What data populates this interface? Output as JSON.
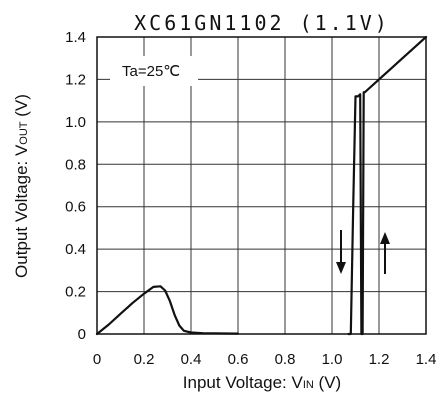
{
  "chart_data": {
    "type": "line",
    "title": "XC61GN1102 (1.1V)",
    "xlabel_main": "Input Voltage: V",
    "xlabel_sub": "IN",
    "xlabel_tail": " (V)",
    "ylabel_main": "Output Voltage: V",
    "ylabel_sub": "OUT",
    "ylabel_tail": " (V)",
    "xlim": [
      0,
      1.4
    ],
    "ylim": [
      0,
      1.4
    ],
    "x_ticks": [
      {
        "value": 0,
        "label": "0"
      },
      {
        "value": 0.2,
        "label": "0.2"
      },
      {
        "value": 0.4,
        "label": "0.4"
      },
      {
        "value": 0.6,
        "label": "0.6"
      },
      {
        "value": 0.8,
        "label": "0.8"
      },
      {
        "value": 1.0,
        "label": "1.0"
      },
      {
        "value": 1.2,
        "label": "1.2"
      },
      {
        "value": 1.4,
        "label": "1.4"
      }
    ],
    "y_ticks": [
      {
        "value": 0,
        "label": "0"
      },
      {
        "value": 0.2,
        "label": "0.2"
      },
      {
        "value": 0.4,
        "label": "0.4"
      },
      {
        "value": 0.6,
        "label": "0.6"
      },
      {
        "value": 0.8,
        "label": "0.8"
      },
      {
        "value": 1.0,
        "label": "1.0"
      },
      {
        "value": 1.2,
        "label": "1.2"
      },
      {
        "value": 1.4,
        "label": "1.4"
      }
    ],
    "grid": true,
    "annotation": "Ta=25℃",
    "series": [
      {
        "x": [
          0,
          0.05,
          0.1,
          0.15,
          0.2,
          0.24,
          0.27,
          0.29,
          0.31,
          0.33,
          0.35,
          0.37,
          0.4,
          0.45,
          0.5,
          0.6
        ],
        "y": [
          0,
          0.045,
          0.095,
          0.145,
          0.19,
          0.222,
          0.225,
          0.205,
          0.155,
          0.09,
          0.04,
          0.015,
          0.007,
          0.004,
          0.003,
          0.002
        ]
      },
      {
        "x": [
          1.07,
          1.08,
          1.09,
          1.1,
          1.11,
          1.12,
          1.125,
          1.13,
          1.135,
          1.14,
          1.15,
          1.2,
          1.25,
          1.3,
          1.35,
          1.4
        ],
        "y": [
          0,
          0,
          0.6,
          1.12,
          1.12,
          1.13,
          0,
          0,
          1.14,
          1.14,
          1.15,
          1.2,
          1.25,
          1.3,
          1.35,
          1.4
        ]
      }
    ]
  }
}
